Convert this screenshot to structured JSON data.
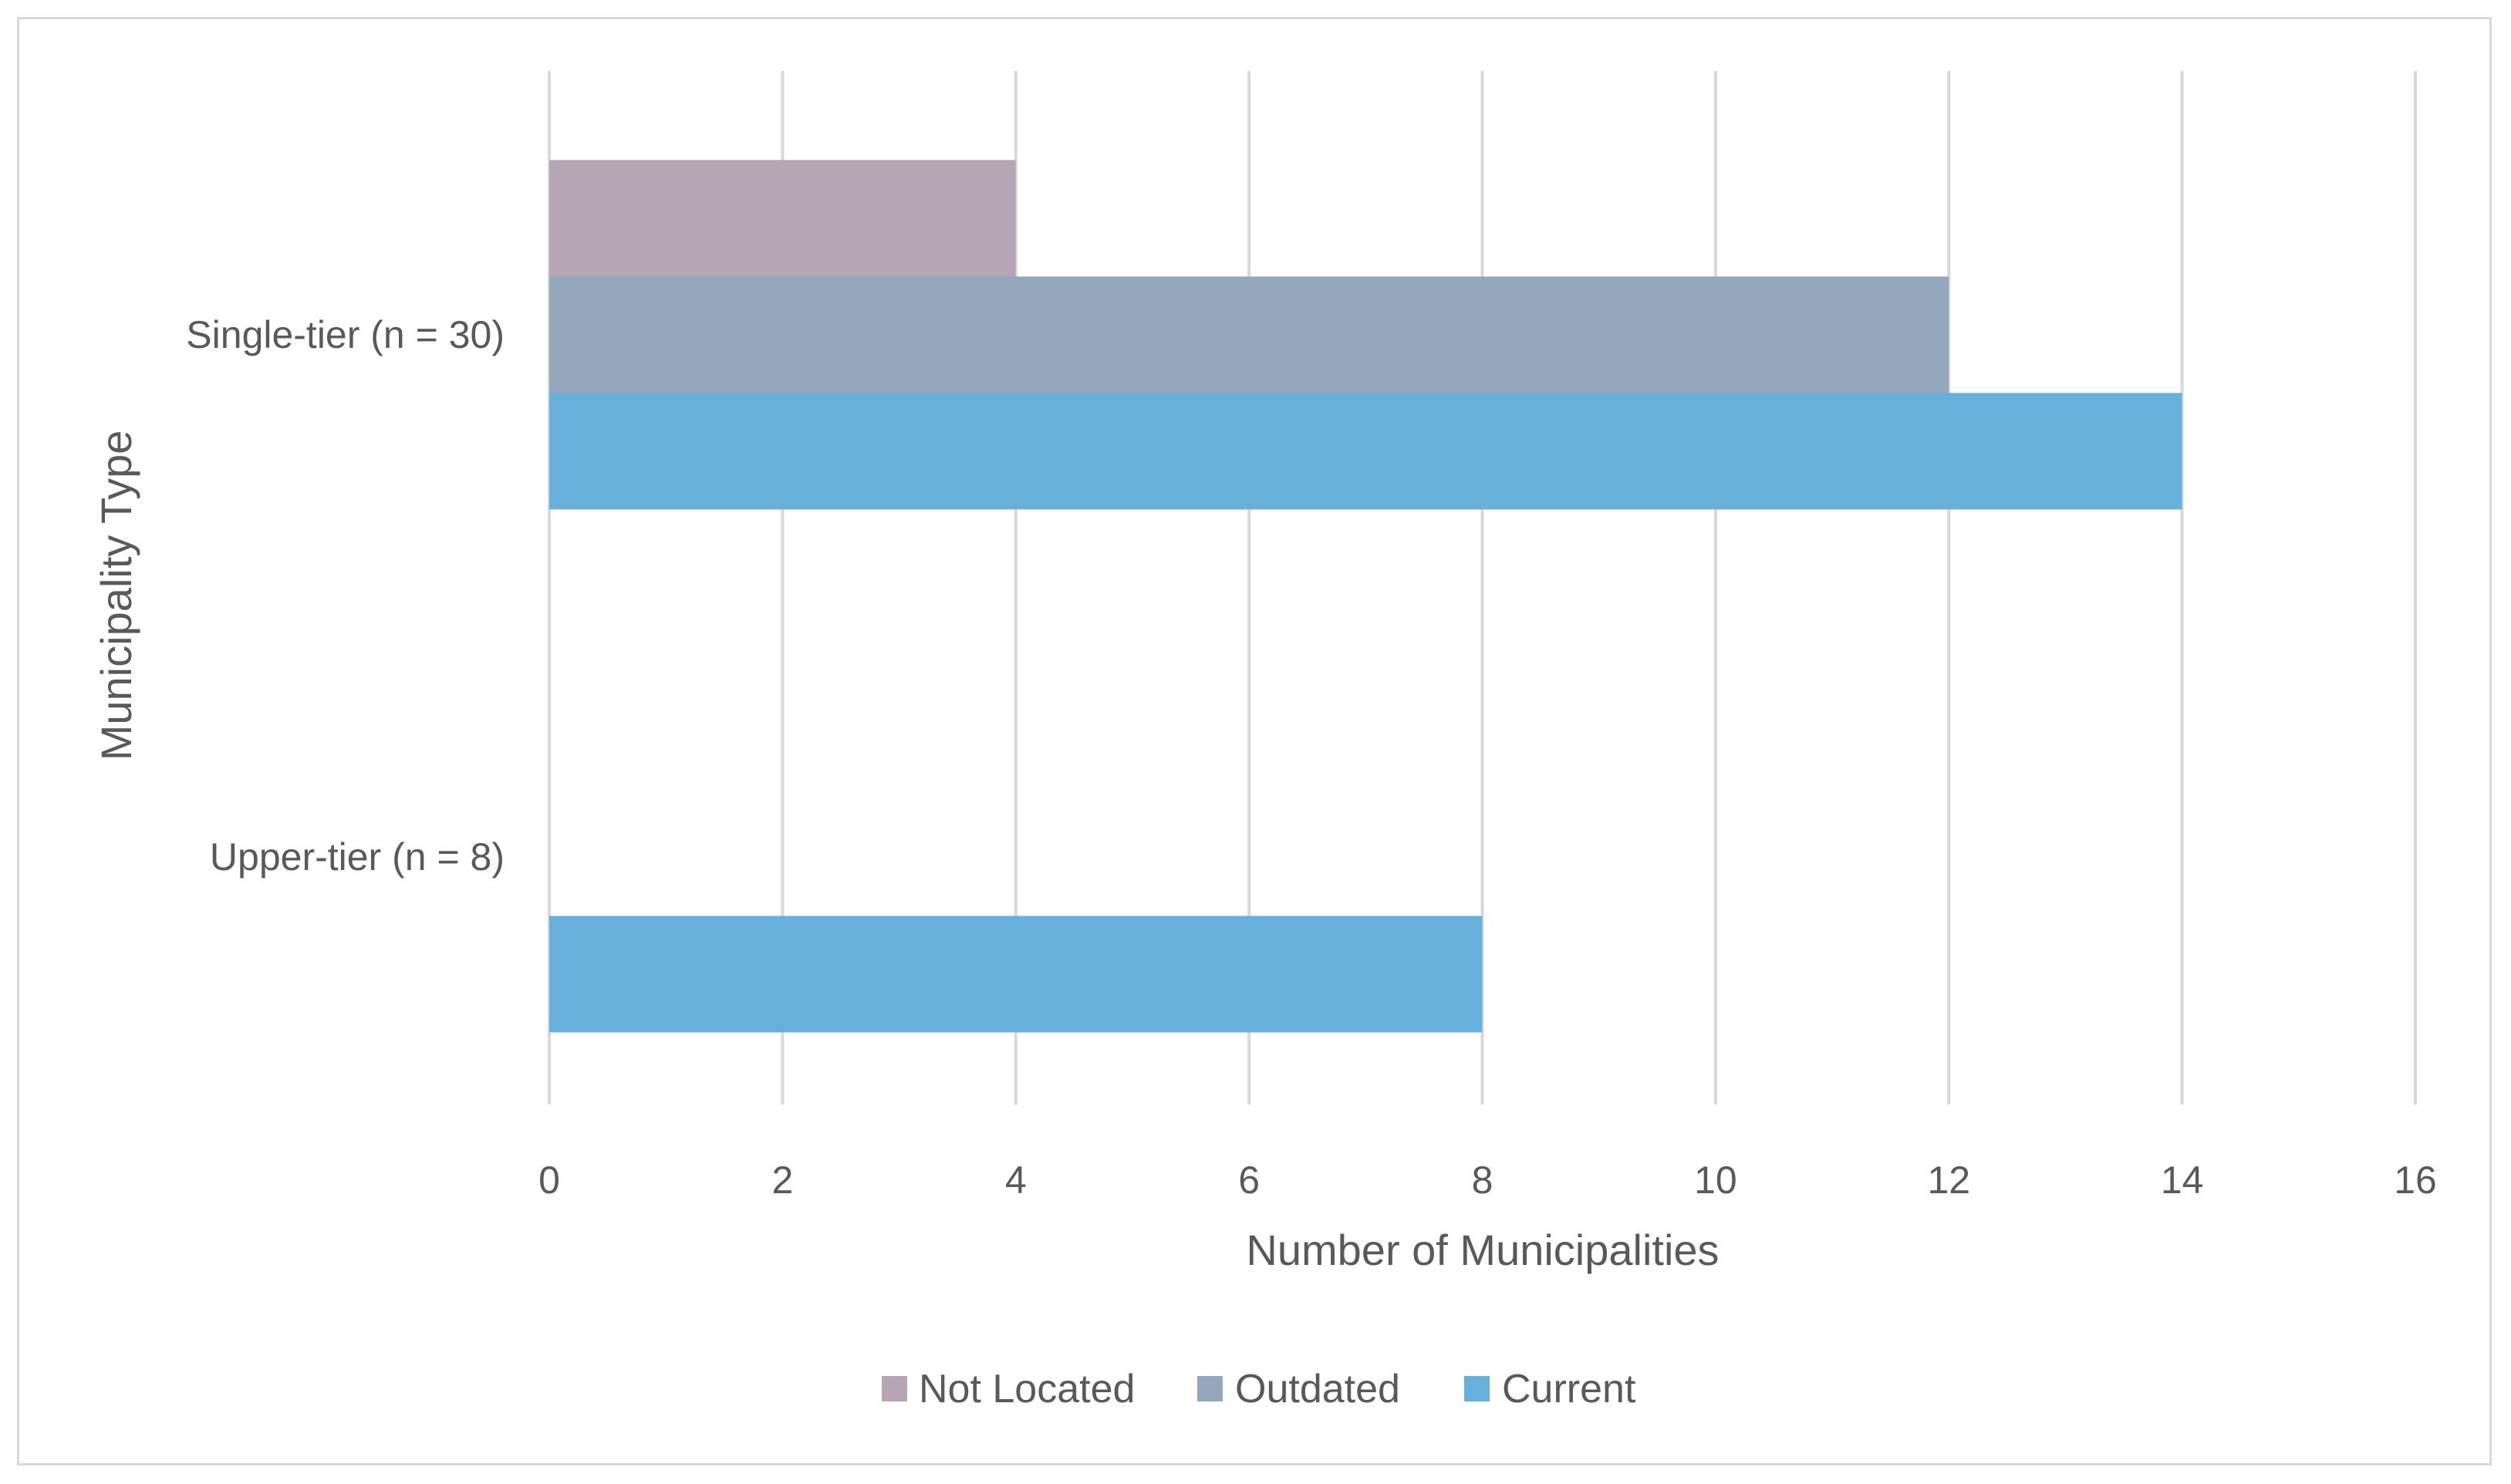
{
  "chart_data": {
    "type": "bar",
    "orientation": "horizontal",
    "categories": [
      "Single-tier (n = 30)",
      "Upper-tier (n = 8)"
    ],
    "series": [
      {
        "name": "Not Located",
        "color": "#b5a5b5",
        "values": [
          4,
          0
        ]
      },
      {
        "name": "Outdated",
        "color": "#95a7bd",
        "values": [
          12,
          0
        ]
      },
      {
        "name": "Current",
        "color": "#67b0dc",
        "values": [
          14,
          8
        ]
      }
    ],
    "xlabel": "Number of Municipalities",
    "ylabel": "Municipality Type",
    "xlim": [
      0,
      16
    ],
    "xticks": [
      "0",
      "2",
      "4",
      "6",
      "8",
      "10",
      "12",
      "14",
      "16"
    ],
    "grid": "vertical",
    "legend_position": "bottom"
  }
}
